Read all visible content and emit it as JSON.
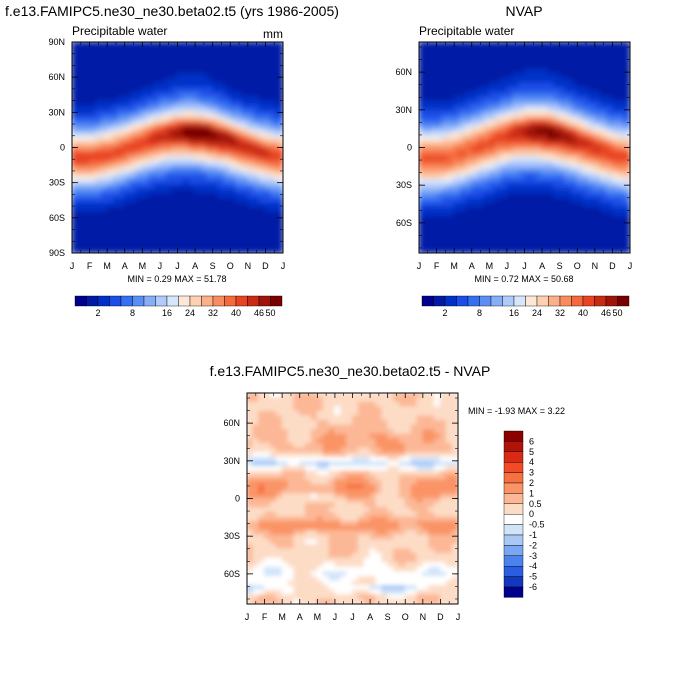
{
  "chart_data": [
    {
      "type": "heatmap",
      "id": "model",
      "title": "f.e13.FAMIPC5.ne30_ne30.beta02.t5 (yrs 1986-2005)",
      "left_label": "Precipitable water",
      "right_label": "mm",
      "x_ticks": [
        "J",
        "F",
        "M",
        "A",
        "M",
        "J",
        "J",
        "A",
        "S",
        "O",
        "N",
        "D",
        "J"
      ],
      "y_ticks": [
        "90N",
        "60N",
        "30N",
        "0",
        "30S",
        "60S",
        "90S"
      ],
      "ylim": [
        -90,
        90
      ],
      "stats": "MIN =  0.29 MAX =  51.78",
      "min": 0.29,
      "max": 51.78
    },
    {
      "type": "heatmap",
      "id": "obs",
      "title": "NVAP",
      "left_label": "Precipitable water",
      "x_ticks": [
        "J",
        "F",
        "M",
        "A",
        "M",
        "J",
        "J",
        "A",
        "S",
        "O",
        "N",
        "D",
        "J"
      ],
      "y_ticks": [
        "60N",
        "30N",
        "0",
        "30S",
        "60S"
      ],
      "ylim": [
        -84,
        84
      ],
      "stats": "MIN =  0.72 MAX =  50.68",
      "min": 0.72,
      "max": 50.68
    },
    {
      "type": "heatmap",
      "id": "diff",
      "title": "f.e13.FAMIPC5.ne30_ne30.beta02.t5 - NVAP",
      "x_ticks": [
        "J",
        "F",
        "M",
        "A",
        "M",
        "J",
        "J",
        "A",
        "S",
        "O",
        "N",
        "D",
        "J"
      ],
      "y_ticks": [
        "60N",
        "30N",
        "0",
        "30S",
        "60S"
      ],
      "ylim": [
        -84,
        84
      ],
      "stats": "MIN = -1.93 MAX =   3.22",
      "min": -1.93,
      "max": 3.22
    }
  ],
  "colorbar_top": {
    "labels": [
      "2",
      "8",
      "16",
      "24",
      "32",
      "40",
      "46",
      "50"
    ],
    "colors": [
      "#00008c",
      "#001aa6",
      "#0030c8",
      "#1a4ee6",
      "#3470f0",
      "#5a8ef5",
      "#86aef8",
      "#b0cafa",
      "#d8e6fb",
      "#fde8d8",
      "#fcd0b0",
      "#fbb088",
      "#f98c5e",
      "#f56a3c",
      "#e84422",
      "#c82a14",
      "#a01508",
      "#780000"
    ]
  },
  "colorbar_diff": {
    "labels": [
      "6",
      "5",
      "4",
      "3",
      "2",
      "1",
      "0.5",
      "0",
      "-0.5",
      "-1",
      "-2",
      "-3",
      "-4",
      "-5",
      "-6"
    ],
    "colors": [
      "#8c0000",
      "#b31208",
      "#d82a14",
      "#f24a24",
      "#f77040",
      "#fa9466",
      "#fcb896",
      "#fddcc6",
      "#ffffff",
      "#d2e4fa",
      "#a8c8f6",
      "#7aa6f2",
      "#4c82ec",
      "#2a5ee0",
      "#1338c0",
      "#000090"
    ]
  }
}
